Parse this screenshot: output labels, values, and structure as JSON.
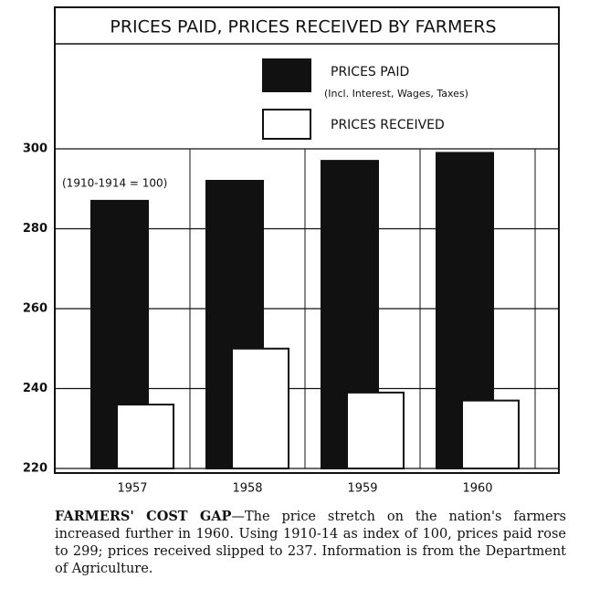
{
  "chart_data": {
    "type": "bar",
    "title": "PRICES PAID, PRICES RECEIVED BY FARMERS",
    "annotation": "(1910-1914 = 100)",
    "categories": [
      "1957",
      "1958",
      "1959",
      "1960"
    ],
    "series": [
      {
        "name": "PRICES PAID",
        "note": "(Incl. Interest, Wages, Taxes)",
        "color": "#111111",
        "values": [
          287,
          292,
          297,
          299
        ]
      },
      {
        "name": "PRICES RECEIVED",
        "color": "#ffffff",
        "values": [
          236,
          250,
          239,
          237
        ]
      }
    ],
    "ylim": [
      220,
      300
    ],
    "yticks": [
      220,
      240,
      260,
      280,
      300
    ],
    "grid": true
  },
  "caption": {
    "lead": "FARMERS' COST GAP",
    "text": "—The price stretch on the nation's farmers increased further in 1960. Using 1910-14 as index of 100, prices paid rose to 299; prices received slipped to 237. Information is from the Department of Agriculture."
  }
}
